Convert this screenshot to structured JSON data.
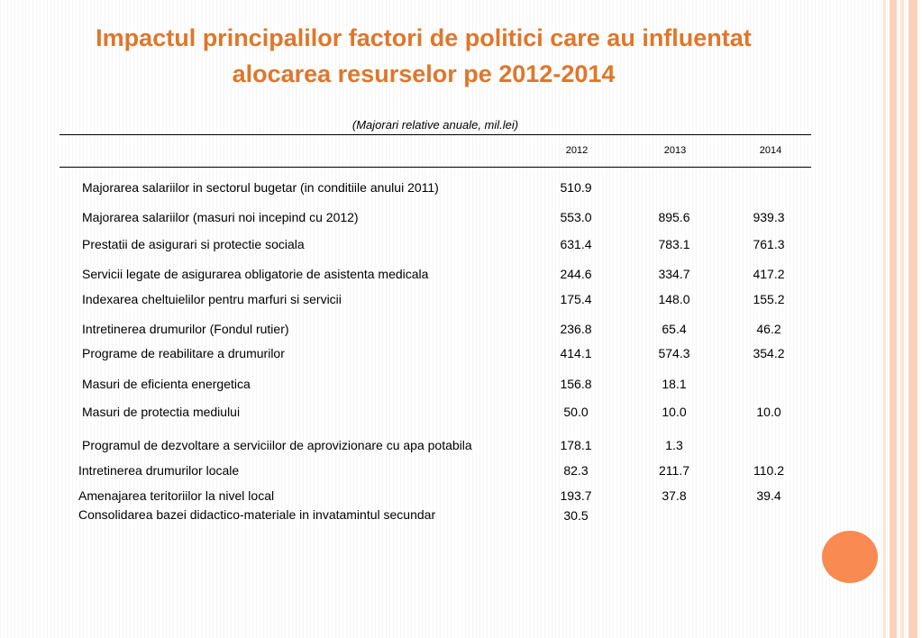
{
  "title": {
    "line1": "Impactul principalilor factori de politici care au influentat",
    "line2": "alocarea resurselor pe 2012-2014"
  },
  "subtitle": "(Majorari relative anuale, mil.lei)",
  "years": [
    "2012",
    "2013",
    "2014"
  ],
  "rows": [
    {
      "label": "Majorarea salariilor in sectorul bugetar (in conditiile anului 2011)",
      "v2012": "510.9",
      "v2013": "",
      "v2014": ""
    },
    {
      "label": "Majorarea salariilor (masuri noi incepind cu 2012)",
      "v2012": "553.0",
      "v2013": "895.6",
      "v2014": "939.3"
    },
    {
      "label": "Prestatii de asigurari si protectie sociala",
      "v2012": "631.4",
      "v2013": "783.1",
      "v2014": "761.3"
    },
    {
      "label": "Servicii legate de asigurarea obligatorie de asistenta medicala",
      "v2012": "244.6",
      "v2013": "334.7",
      "v2014": "417.2"
    },
    {
      "label": "Indexarea cheltuielilor pentru marfuri si servicii",
      "v2012": "175.4",
      "v2013": "148.0",
      "v2014": "155.2"
    },
    {
      "label": "Intretinerea drumurilor  (Fondul rutier)",
      "v2012": "236.8",
      "v2013": "65.4",
      "v2014": "46.2"
    },
    {
      "label": "Programe  de reabilitare a drumurilor",
      "v2012": "414.1",
      "v2013": "574.3",
      "v2014": "354.2"
    },
    {
      "label": "Masuri de eficienta energetica",
      "v2012": "156.8",
      "v2013": "18.1",
      "v2014": ""
    },
    {
      "label": "Masuri de protectia mediului",
      "v2012": "50.0",
      "v2013": "10.0",
      "v2014": "10.0"
    },
    {
      "label": "Programul de dezvoltare a serviciilor de aprovizionare cu apa potabila",
      "v2012": "178.1",
      "v2013": "1.3",
      "v2014": ""
    },
    {
      "label": "Intretinerea drumurilor locale",
      "v2012": "82.3",
      "v2013": "211.7",
      "v2014": "110.2"
    },
    {
      "label": "Amenajarea teritoriilor la nivel local",
      "v2012": "193.7",
      "v2013": "37.8",
      "v2014": "39.4"
    },
    {
      "label": "Consolidarea bazei didactico-materiale in invatamintul secundar",
      "v2012": "30.5",
      "v2013": "",
      "v2014": ""
    }
  ],
  "colors": {
    "title": "#e0762a",
    "accent_circle": "#f98a52",
    "stripe_light": "#fde3d4",
    "stripe_mid": "#fbd0b8"
  }
}
